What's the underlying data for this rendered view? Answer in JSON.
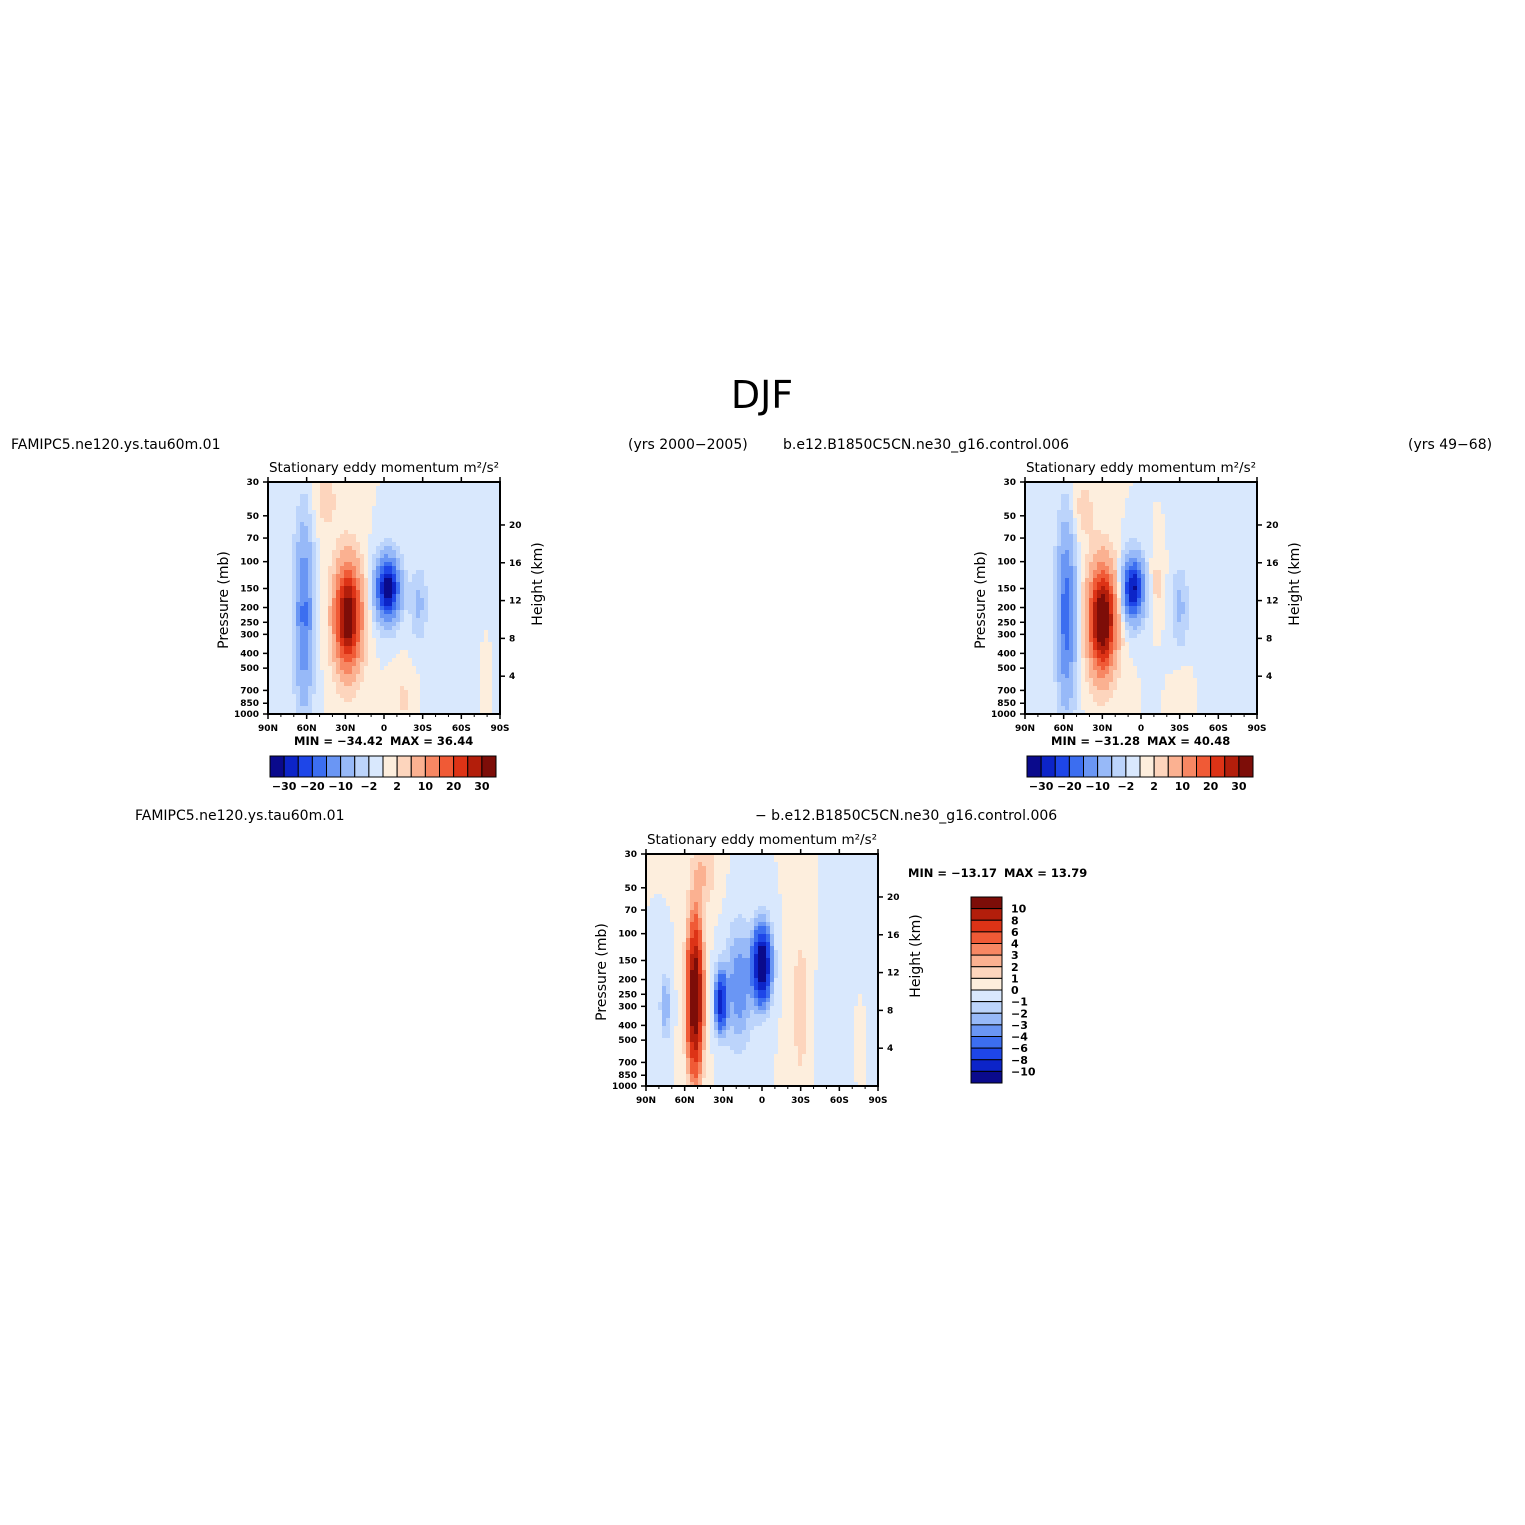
{
  "page_title": "DJF",
  "colors": {
    "diff_levels": [
      "#0a0a8c",
      "#0c24c8",
      "#1e46e8",
      "#3c6ef0",
      "#6a96f4",
      "#97b9f8",
      "#bcd4fb",
      "#d9e8fd",
      "#fdeedd",
      "#fdd5bd",
      "#fbb191",
      "#f78763",
      "#f05a36",
      "#dd3316",
      "#b31e0b",
      "#7d0d08"
    ],
    "full_levels": [
      "#0a0a8c",
      "#0c24c8",
      "#1e46e8",
      "#3c6ef0",
      "#6a96f4",
      "#97b9f8",
      "#bcd4fb",
      "#d9e8fd",
      "#fdeedd",
      "#fdd5bd",
      "#fbb191",
      "#f78763",
      "#f05a36",
      "#dd3316",
      "#b31e0b",
      "#7d0d08"
    ]
  },
  "headers": {
    "case1_name": "FAMIPC5.ne120.ys.tau60m.01",
    "case1_years": "(yrs 2000−2005)",
    "case2_name": "b.e12.B1850C5CN.ne30_g16.control.006",
    "case2_years": "(yrs 49−68)",
    "diff_left": "FAMIPC5.ne120.ys.tau60m.01",
    "diff_right": "− b.e12.B1850C5CN.ne30_g16.control.006"
  },
  "chart_data": [
    {
      "type": "heatmap",
      "title": "Stationary eddy momentum",
      "units": "m²/s²",
      "ylabel": "Pressure (mb)",
      "y2label": "Height (km)",
      "x_ticks": [
        "90N",
        "60N",
        "30N",
        "0",
        "30S",
        "60S",
        "90S"
      ],
      "y_ticks": [
        "30",
        "50",
        "70",
        "100",
        "150",
        "200",
        "250",
        "300",
        "400",
        "500",
        "700",
        "850",
        "1000"
      ],
      "y2_ticks": [
        "20",
        "16",
        "12",
        "8",
        "4"
      ],
      "min_label": "MIN = −34.42",
      "max_label": "MAX = 36.44",
      "min": -34.42,
      "max": 36.44,
      "colorbar_labels": [
        "−30",
        "−20",
        "−10",
        "−2",
        "2",
        "10",
        "20",
        "30"
      ],
      "features": [
        {
          "sign": "negative",
          "lat": -3,
          "pressure": 150,
          "peak": -34.42
        },
        {
          "sign": "positive",
          "lat": 28,
          "pressure": 220,
          "peak": 36.44
        },
        {
          "sign": "negative",
          "lat": 62,
          "pressure": 200,
          "peak": -16
        },
        {
          "sign": "negative",
          "lat": -27,
          "pressure": 180,
          "peak": -6
        }
      ]
    },
    {
      "type": "heatmap",
      "title": "Stationary eddy momentum",
      "units": "m²/s²",
      "ylabel": "Pressure (mb)",
      "y2label": "Height (km)",
      "x_ticks": [
        "90N",
        "60N",
        "30N",
        "0",
        "30S",
        "60S",
        "90S"
      ],
      "y_ticks": [
        "30",
        "50",
        "70",
        "100",
        "150",
        "200",
        "250",
        "300",
        "400",
        "500",
        "700",
        "850",
        "1000"
      ],
      "y2_ticks": [
        "20",
        "16",
        "12",
        "8",
        "4"
      ],
      "min_label": "MIN = −31.28",
      "max_label": "MAX = 40.48",
      "min": -31.28,
      "max": 40.48,
      "colorbar_labels": [
        "−30",
        "−20",
        "−10",
        "−2",
        "2",
        "10",
        "20",
        "30"
      ],
      "features": [
        {
          "sign": "negative",
          "lat": 6,
          "pressure": 150,
          "peak": -31.28
        },
        {
          "sign": "positive",
          "lat": 30,
          "pressure": 230,
          "peak": 40.48
        },
        {
          "sign": "negative",
          "lat": 58,
          "pressure": 180,
          "peak": -18
        },
        {
          "sign": "negative",
          "lat": -30,
          "pressure": 180,
          "peak": -6
        }
      ]
    },
    {
      "type": "heatmap",
      "title": "Stationary eddy momentum",
      "units": "m²/s²",
      "ylabel": "Pressure (mb)",
      "y2label": "Height (km)",
      "x_ticks": [
        "90N",
        "60N",
        "30N",
        "0",
        "30S",
        "60S",
        "90S"
      ],
      "y_ticks": [
        "30",
        "50",
        "70",
        "100",
        "150",
        "200",
        "250",
        "300",
        "400",
        "500",
        "700",
        "850",
        "1000"
      ],
      "y2_ticks": [
        "20",
        "16",
        "12",
        "8",
        "4"
      ],
      "min_label": "MIN = −13.17",
      "max_label": "MAX = 13.79",
      "min": -13.17,
      "max": 13.79,
      "colorbar_labels": [
        "10",
        "8",
        "6",
        "4",
        "3",
        "2",
        "1",
        "0",
        "−1",
        "−2",
        "−3",
        "−4",
        "−6",
        "−8",
        "−10"
      ],
      "features": [
        {
          "sign": "positive",
          "lat": 52,
          "pressure": 250,
          "peak": 13.79
        },
        {
          "sign": "negative",
          "lat": 32,
          "pressure": 280,
          "peak": -9
        },
        {
          "sign": "negative",
          "lat": 0,
          "pressure": 160,
          "peak": -13.17
        },
        {
          "sign": "negative",
          "lat": 75,
          "pressure": 300,
          "peak": -3
        }
      ]
    }
  ]
}
